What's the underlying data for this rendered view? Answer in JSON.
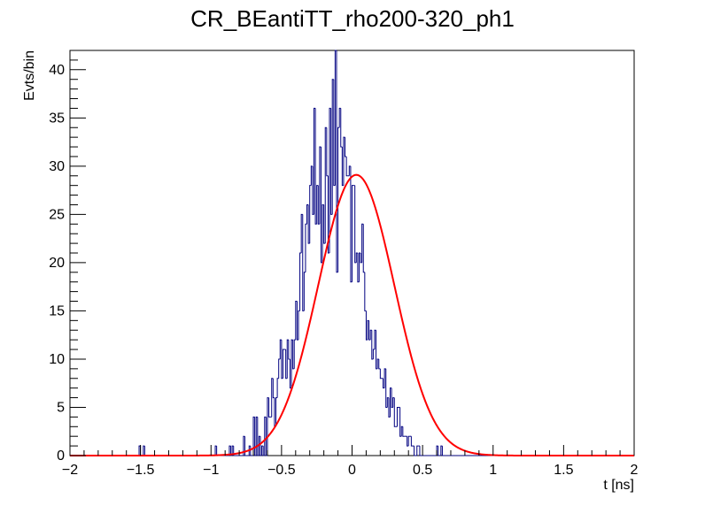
{
  "chart_data": {
    "type": "histogram",
    "title": "CR_BEantiTT_rho200-320_ph1",
    "xlabel": "t [ns]",
    "ylabel": "Evts/bin",
    "xlim": [
      -2,
      2
    ],
    "ylim": [
      0,
      42
    ],
    "grid": false,
    "x_ticks": [
      "−2",
      "−1.5",
      "−1",
      "−0.5",
      "0",
      "0.5",
      "1",
      "1.5",
      "2"
    ],
    "y_ticks": [
      "0",
      "5",
      "10",
      "15",
      "20",
      "25",
      "30",
      "35",
      "40"
    ],
    "series": [
      {
        "kind": "histogram",
        "color": "#000080",
        "bin_edges": [
          -2,
          2
        ],
        "bin_width": 0.01,
        "counts": [
          0,
          0,
          0,
          0,
          0,
          0,
          0,
          0,
          0,
          0,
          0,
          0,
          0,
          0,
          0,
          0,
          0,
          0,
          0,
          0,
          0,
          0,
          0,
          0,
          0,
          0,
          0,
          0,
          0,
          0,
          0,
          0,
          0,
          0,
          0,
          0,
          0,
          0,
          0,
          0,
          0,
          0,
          0,
          0,
          0,
          0,
          0,
          0,
          0,
          1,
          0,
          0,
          1,
          0,
          0,
          0,
          0,
          0,
          0,
          0,
          0,
          0,
          0,
          0,
          0,
          0,
          0,
          0,
          0,
          0,
          0,
          0,
          0,
          0,
          0,
          0,
          0,
          0,
          0,
          0,
          0,
          0,
          0,
          0,
          0,
          0,
          0,
          0,
          0,
          0,
          0,
          0,
          0,
          0,
          0,
          0,
          0,
          0,
          0,
          0,
          0,
          0,
          0,
          1,
          0,
          0,
          0,
          0,
          0,
          0,
          0,
          0,
          0,
          1,
          0,
          1,
          0,
          0,
          0,
          0,
          0,
          0,
          0,
          2,
          0,
          0,
          0,
          1,
          0,
          0,
          4,
          0,
          4,
          0,
          2,
          0,
          1,
          0,
          4,
          0,
          6,
          4,
          4,
          8,
          6,
          3,
          6,
          8,
          10,
          12,
          8,
          11,
          11,
          8,
          12,
          10,
          7,
          12,
          9,
          12,
          16,
          12,
          15,
          21,
          25,
          15,
          19,
          24,
          26,
          22,
          28,
          30,
          25,
          36,
          24,
          28,
          24,
          32,
          20,
          26,
          22,
          34,
          29,
          21,
          36,
          25,
          39,
          28,
          42,
          19,
          34,
          36,
          32,
          28,
          33,
          31,
          29,
          29,
          30,
          18,
          28,
          28,
          20,
          21,
          18,
          21,
          20,
          24,
          19,
          15,
          12,
          14,
          12,
          13,
          10,
          11,
          13,
          9,
          10,
          9,
          8,
          8,
          7,
          9,
          5,
          6,
          4,
          7,
          5,
          6,
          3,
          3,
          5,
          5,
          2,
          3,
          2,
          2,
          2,
          1,
          2,
          2,
          1,
          1,
          0,
          0,
          1,
          1,
          0,
          0,
          0,
          0,
          0,
          0,
          0,
          0,
          0,
          0,
          0,
          0,
          1,
          0,
          0,
          1,
          0,
          0,
          0,
          0,
          0,
          0,
          0,
          0,
          0,
          0,
          0,
          0,
          0,
          0,
          0,
          0,
          0,
          0,
          0,
          0,
          0,
          0,
          0,
          0,
          0,
          0,
          0,
          0,
          0,
          0,
          0,
          0,
          0,
          0,
          0,
          0,
          0,
          0,
          0,
          0,
          0,
          0,
          0,
          0,
          0,
          0,
          0,
          0,
          0,
          0,
          0,
          0,
          0,
          0,
          0,
          0,
          0,
          0,
          0,
          0,
          0,
          0,
          0,
          0,
          0,
          0,
          0,
          0,
          0,
          0,
          0,
          0,
          0,
          0,
          0,
          0,
          0,
          0,
          0,
          0,
          0,
          0,
          0,
          0,
          0,
          0,
          0,
          0,
          0,
          0,
          0,
          0,
          0,
          0,
          0,
          0,
          0,
          0,
          0,
          0,
          0,
          0,
          0,
          0,
          0,
          0,
          0,
          0,
          0,
          0,
          0,
          0,
          0,
          0,
          0,
          0,
          0,
          0,
          0,
          0,
          0,
          0,
          0,
          0,
          0,
          0,
          0,
          0,
          0,
          0,
          0,
          0,
          0,
          0,
          0,
          0
        ]
      },
      {
        "kind": "gaussian_fit",
        "color": "#ff0000",
        "amplitude": 29.1,
        "mean": 0.03,
        "sigma": 0.27
      }
    ]
  }
}
